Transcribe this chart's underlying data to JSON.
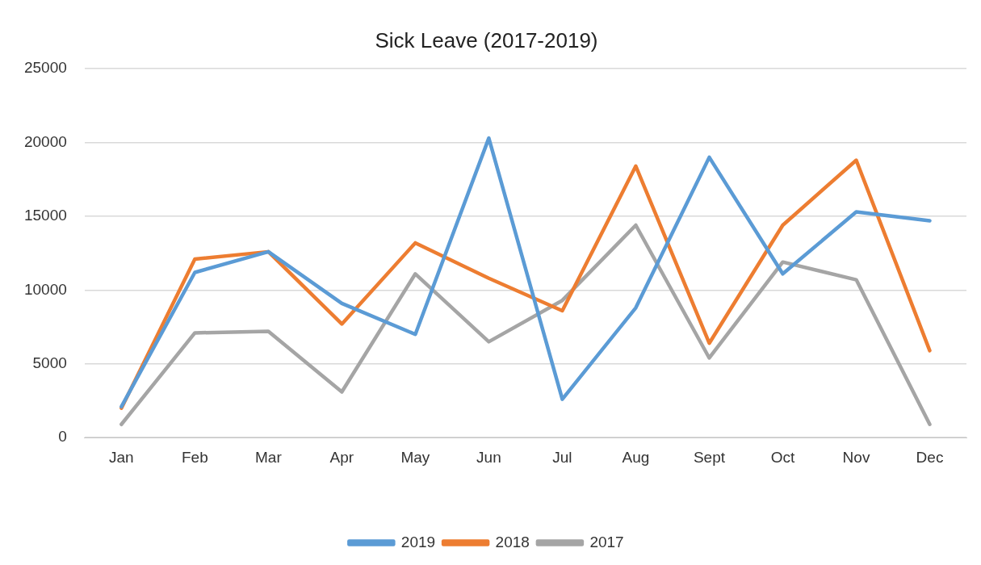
{
  "chart_data": {
    "type": "line",
    "title": "Sick Leave (2017-2019)",
    "categories": [
      "Jan",
      "Feb",
      "Mar",
      "Apr",
      "May",
      "Jun",
      "Jul",
      "Aug",
      "Sept",
      "Oct",
      "Nov",
      "Dec"
    ],
    "series": [
      {
        "name": "2019",
        "color": "#5b9bd5",
        "values": [
          2100,
          11200,
          12600,
          9100,
          7000,
          20300,
          2600,
          8800,
          19000,
          11100,
          15300,
          14700
        ]
      },
      {
        "name": "2018",
        "color": "#ed7d31",
        "values": [
          2000,
          12100,
          12600,
          7700,
          13200,
          10800,
          8600,
          18400,
          6400,
          14400,
          18800,
          5900
        ]
      },
      {
        "name": "2017",
        "color": "#a5a5a5",
        "values": [
          900,
          7100,
          7200,
          3100,
          11100,
          6500,
          9300,
          14400,
          5400,
          11900,
          10700,
          900
        ]
      }
    ],
    "ylim": [
      0,
      25000
    ],
    "yticks": [
      0,
      5000,
      10000,
      15000,
      20000,
      25000
    ],
    "grid": "y",
    "legend": "bottom",
    "marker": "none",
    "line_style": "solid"
  }
}
